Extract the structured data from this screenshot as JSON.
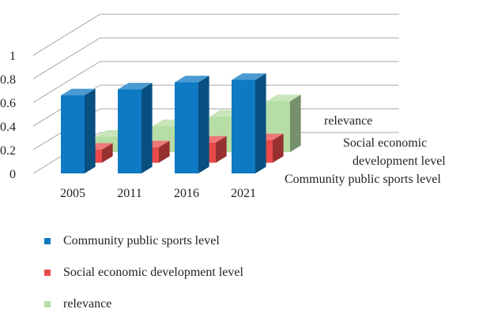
{
  "chart_data": {
    "type": "bar",
    "title": "",
    "categories": [
      "2005",
      "2011",
      "2016",
      "2021"
    ],
    "series": [
      {
        "name": "Community public sports level",
        "values": [
          0.66,
          0.71,
          0.77,
          0.79
        ],
        "color": "#0E7AC4"
      },
      {
        "name": "Social economic development level",
        "values": [
          0.11,
          0.13,
          0.17,
          0.19
        ],
        "color": "#E84A4A"
      },
      {
        "name": "relevance",
        "values": [
          0.13,
          0.22,
          0.3,
          0.43
        ],
        "color": "#B6DDA3"
      }
    ],
    "depth_axis_labels": [
      "Community public sports level",
      "Social economic development level",
      "relevance"
    ],
    "ylim": [
      0,
      1
    ],
    "yticks": [
      "0",
      "0.2",
      "0.4",
      "0.6",
      "0.8",
      "1"
    ],
    "grid": true,
    "legend": "bottom",
    "legend_marker": "square"
  }
}
